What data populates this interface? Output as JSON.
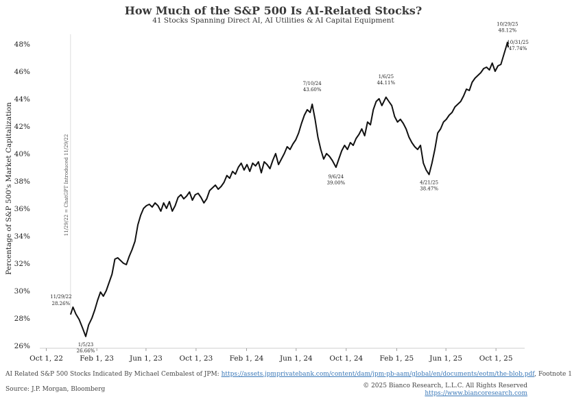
{
  "chart_data": {
    "type": "line",
    "title": "How Much of the S&P 500 Is AI-Related Stocks?",
    "subtitle": "41 Stocks Spanning Direct AI, AI Utilities & AI Capital Equipment",
    "ylabel": "Percentage of S&P 500's Market Capitalization",
    "xlabel": "",
    "ylim": [
      25.8,
      49
    ],
    "xlim": [
      "2022-09-15",
      "2025-12-10"
    ],
    "y_ticks": [
      26,
      28,
      30,
      32,
      34,
      36,
      38,
      40,
      42,
      44,
      46,
      48
    ],
    "y_tick_labels": [
      "26%",
      "28%",
      "30%",
      "32%",
      "34%",
      "36%",
      "38%",
      "40%",
      "42%",
      "44%",
      "46%",
      "48%"
    ],
    "x_ticks": [
      "2022-10-01",
      "2023-02-01",
      "2023-06-01",
      "2023-10-01",
      "2024-02-01",
      "2024-06-01",
      "2024-10-01",
      "2025-02-01",
      "2025-06-01",
      "2025-10-01"
    ],
    "x_tick_labels": [
      "Oct 1, 22",
      "Feb 1, 23",
      "Jun 1, 23",
      "Oct 1, 23",
      "Feb 1, 24",
      "Jun 1, 24",
      "Oct 1, 24",
      "Feb 1, 25",
      "Jun 1, 25",
      "Oct 1, 25"
    ],
    "grid": false,
    "series": [
      {
        "x": [
          "2022-11-29",
          "2022-12-05",
          "2022-12-12",
          "2022-12-20",
          "2022-12-28",
          "2023-01-05",
          "2023-01-12",
          "2023-01-20",
          "2023-01-27",
          "2023-02-03",
          "2023-02-10",
          "2023-02-17",
          "2023-02-24",
          "2023-03-03",
          "2023-03-10",
          "2023-03-17",
          "2023-03-24",
          "2023-03-31",
          "2023-04-07",
          "2023-04-14",
          "2023-04-21",
          "2023-04-28",
          "2023-05-05",
          "2023-05-12",
          "2023-05-19",
          "2023-05-26",
          "2023-06-02",
          "2023-06-09",
          "2023-06-16",
          "2023-06-23",
          "2023-06-30",
          "2023-07-07",
          "2023-07-14",
          "2023-07-21",
          "2023-07-28",
          "2023-08-04",
          "2023-08-11",
          "2023-08-18",
          "2023-08-25",
          "2023-09-01",
          "2023-09-08",
          "2023-09-15",
          "2023-09-22",
          "2023-09-29",
          "2023-10-06",
          "2023-10-13",
          "2023-10-20",
          "2023-10-27",
          "2023-11-03",
          "2023-11-10",
          "2023-11-17",
          "2023-11-24",
          "2023-12-01",
          "2023-12-08",
          "2023-12-15",
          "2023-12-22",
          "2023-12-29",
          "2024-01-05",
          "2024-01-12",
          "2024-01-19",
          "2024-01-26",
          "2024-02-02",
          "2024-02-09",
          "2024-02-16",
          "2024-02-23",
          "2024-03-01",
          "2024-03-08",
          "2024-03-15",
          "2024-03-22",
          "2024-03-29",
          "2024-04-05",
          "2024-04-12",
          "2024-04-19",
          "2024-04-26",
          "2024-05-03",
          "2024-05-10",
          "2024-05-17",
          "2024-05-24",
          "2024-05-31",
          "2024-06-07",
          "2024-06-14",
          "2024-06-21",
          "2024-06-28",
          "2024-07-05",
          "2024-07-10",
          "2024-07-17",
          "2024-07-24",
          "2024-07-31",
          "2024-08-07",
          "2024-08-14",
          "2024-08-21",
          "2024-08-28",
          "2024-09-06",
          "2024-09-13",
          "2024-09-20",
          "2024-09-27",
          "2024-10-04",
          "2024-10-11",
          "2024-10-18",
          "2024-10-25",
          "2024-11-01",
          "2024-11-08",
          "2024-11-15",
          "2024-11-22",
          "2024-11-29",
          "2024-12-06",
          "2024-12-13",
          "2024-12-20",
          "2024-12-27",
          "2025-01-06",
          "2025-01-13",
          "2025-01-20",
          "2025-01-27",
          "2025-02-03",
          "2025-02-10",
          "2025-02-17",
          "2025-02-24",
          "2025-03-03",
          "2025-03-10",
          "2025-03-17",
          "2025-03-24",
          "2025-03-31",
          "2025-04-07",
          "2025-04-14",
          "2025-04-21",
          "2025-04-28",
          "2025-05-05",
          "2025-05-12",
          "2025-05-19",
          "2025-05-26",
          "2025-06-02",
          "2025-06-09",
          "2025-06-16",
          "2025-06-23",
          "2025-06-30",
          "2025-07-07",
          "2025-07-14",
          "2025-07-21",
          "2025-07-28",
          "2025-08-04",
          "2025-08-11",
          "2025-08-18",
          "2025-08-25",
          "2025-09-01",
          "2025-09-08",
          "2025-09-15",
          "2025-09-22",
          "2025-09-29",
          "2025-10-06",
          "2025-10-13",
          "2025-10-20",
          "2025-10-27",
          "2025-10-29",
          "2025-10-31"
        ],
        "values": [
          28.26,
          28.8,
          28.3,
          27.9,
          27.3,
          26.66,
          27.5,
          28.0,
          28.6,
          29.3,
          29.9,
          29.6,
          30.0,
          30.6,
          31.2,
          32.3,
          32.4,
          32.2,
          32.0,
          31.9,
          32.5,
          33.0,
          33.6,
          34.8,
          35.5,
          36.0,
          36.2,
          36.3,
          36.1,
          36.4,
          36.2,
          35.8,
          36.4,
          36.0,
          36.5,
          35.8,
          36.2,
          36.8,
          37.0,
          36.7,
          36.9,
          37.2,
          36.6,
          37.0,
          37.1,
          36.8,
          36.4,
          36.7,
          37.3,
          37.5,
          37.7,
          37.4,
          37.6,
          37.9,
          38.4,
          38.2,
          38.7,
          38.5,
          39.0,
          39.3,
          38.8,
          39.2,
          38.7,
          39.3,
          39.1,
          39.4,
          38.6,
          39.4,
          39.2,
          38.9,
          39.5,
          40.0,
          39.2,
          39.6,
          40.0,
          40.5,
          40.3,
          40.7,
          41.0,
          41.5,
          42.2,
          42.8,
          43.2,
          43.0,
          43.6,
          42.5,
          41.2,
          40.3,
          39.6,
          40.0,
          39.8,
          39.5,
          39.0,
          39.6,
          40.2,
          40.6,
          40.3,
          40.8,
          40.6,
          41.1,
          41.4,
          41.8,
          41.3,
          42.3,
          42.1,
          43.2,
          43.8,
          44.0,
          43.5,
          44.11,
          43.8,
          43.5,
          42.7,
          42.3,
          42.5,
          42.2,
          41.8,
          41.2,
          40.8,
          40.5,
          40.3,
          40.6,
          39.3,
          38.8,
          38.47,
          39.3,
          40.3,
          41.5,
          41.8,
          42.3,
          42.5,
          42.8,
          43.0,
          43.4,
          43.6,
          43.8,
          44.2,
          44.7,
          44.6,
          45.2,
          45.5,
          45.7,
          45.9,
          46.2,
          46.3,
          46.1,
          46.6,
          46.0,
          46.4,
          46.5,
          47.2,
          47.9,
          48.12,
          47.74
        ]
      }
    ],
    "annotations": [
      {
        "date": "2022-11-29",
        "label_date": "11/29/22",
        "label_value": "28.26%"
      },
      {
        "date": "2023-01-05",
        "label_date": "1/5/23",
        "label_value": "26.66%"
      },
      {
        "date": "2024-07-10",
        "label_date": "7/10/24",
        "label_value": "43.60%"
      },
      {
        "date": "2024-09-06",
        "label_date": "9/6/24",
        "label_value": "39.00%"
      },
      {
        "date": "2025-01-06",
        "label_date": "1/6/25",
        "label_value": "44.11%"
      },
      {
        "date": "2025-04-21",
        "label_date": "4/21/25",
        "label_value": "38.47%"
      },
      {
        "date": "2025-10-29",
        "label_date": "10/29/25",
        "label_value": "48.12%"
      },
      {
        "date": "2025-10-31",
        "label_date": "10/31/25",
        "label_value": "47.74%"
      }
    ],
    "vertical_marker": {
      "date": "2022-11-29",
      "label": "11/29/22 = ChatGPT Introduced 11/29/22"
    }
  },
  "footer": {
    "note_prefix": "AI Related S&P 500 Stocks Indicated By Michael Cembalest of JPM:",
    "note_link": "https://assets.jpmprivatebank.com/content/dam/jpm-pb-aam/global/en/documents/eotm/the-blob.pdf",
    "note_suffix": ", Footnote 1",
    "source": "Source: J.P. Morgan, Bloomberg",
    "copyright": "© 2025 Bianco Research, L.L.C. All Rights Reserved",
    "site_link": "https://www.biancoresearch.com"
  },
  "colors": {
    "line": "#111111",
    "link": "#3a78b8",
    "text": "#222222"
  }
}
